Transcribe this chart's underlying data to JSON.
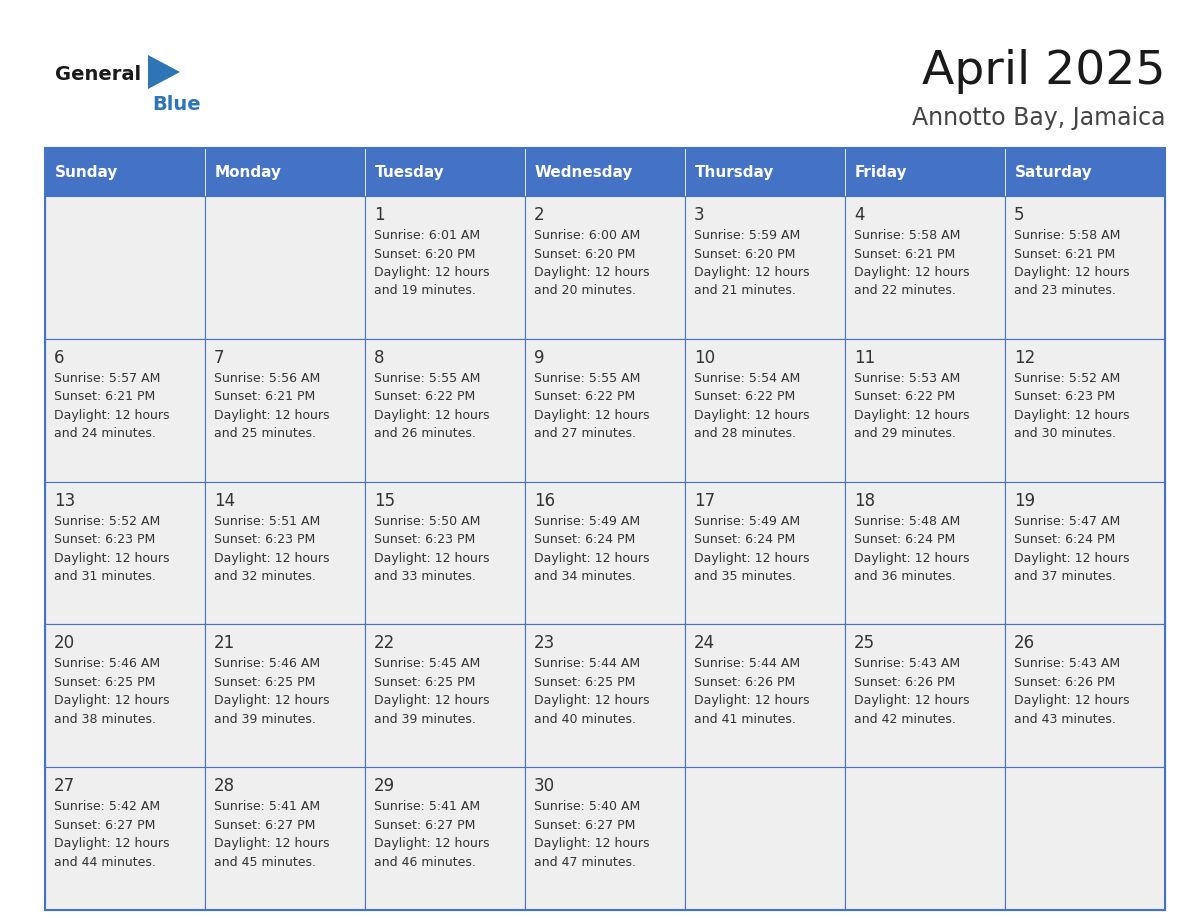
{
  "title": "April 2025",
  "subtitle": "Annotto Bay, Jamaica",
  "days_of_week": [
    "Sunday",
    "Monday",
    "Tuesday",
    "Wednesday",
    "Thursday",
    "Friday",
    "Saturday"
  ],
  "header_bg": "#4472C4",
  "header_text_color": "#FFFFFF",
  "cell_bg": "#EFEFEF",
  "border_color": "#4472C4",
  "row_border_color": "#4472C4",
  "text_color": "#333333",
  "title_color": "#1a1a1a",
  "subtitle_color": "#444444",
  "logo_general_color": "#1a1a1a",
  "logo_blue_color": "#2E75B6",
  "calendar": [
    [
      {
        "day": "",
        "sunrise": "",
        "sunset": "",
        "daylight": ""
      },
      {
        "day": "",
        "sunrise": "",
        "sunset": "",
        "daylight": ""
      },
      {
        "day": "1",
        "sunrise": "6:01 AM",
        "sunset": "6:20 PM",
        "daylight": "12 hours and 19 minutes."
      },
      {
        "day": "2",
        "sunrise": "6:00 AM",
        "sunset": "6:20 PM",
        "daylight": "12 hours and 20 minutes."
      },
      {
        "day": "3",
        "sunrise": "5:59 AM",
        "sunset": "6:20 PM",
        "daylight": "12 hours and 21 minutes."
      },
      {
        "day": "4",
        "sunrise": "5:58 AM",
        "sunset": "6:21 PM",
        "daylight": "12 hours and 22 minutes."
      },
      {
        "day": "5",
        "sunrise": "5:58 AM",
        "sunset": "6:21 PM",
        "daylight": "12 hours and 23 minutes."
      }
    ],
    [
      {
        "day": "6",
        "sunrise": "5:57 AM",
        "sunset": "6:21 PM",
        "daylight": "12 hours and 24 minutes."
      },
      {
        "day": "7",
        "sunrise": "5:56 AM",
        "sunset": "6:21 PM",
        "daylight": "12 hours and 25 minutes."
      },
      {
        "day": "8",
        "sunrise": "5:55 AM",
        "sunset": "6:22 PM",
        "daylight": "12 hours and 26 minutes."
      },
      {
        "day": "9",
        "sunrise": "5:55 AM",
        "sunset": "6:22 PM",
        "daylight": "12 hours and 27 minutes."
      },
      {
        "day": "10",
        "sunrise": "5:54 AM",
        "sunset": "6:22 PM",
        "daylight": "12 hours and 28 minutes."
      },
      {
        "day": "11",
        "sunrise": "5:53 AM",
        "sunset": "6:22 PM",
        "daylight": "12 hours and 29 minutes."
      },
      {
        "day": "12",
        "sunrise": "5:52 AM",
        "sunset": "6:23 PM",
        "daylight": "12 hours and 30 minutes."
      }
    ],
    [
      {
        "day": "13",
        "sunrise": "5:52 AM",
        "sunset": "6:23 PM",
        "daylight": "12 hours and 31 minutes."
      },
      {
        "day": "14",
        "sunrise": "5:51 AM",
        "sunset": "6:23 PM",
        "daylight": "12 hours and 32 minutes."
      },
      {
        "day": "15",
        "sunrise": "5:50 AM",
        "sunset": "6:23 PM",
        "daylight": "12 hours and 33 minutes."
      },
      {
        "day": "16",
        "sunrise": "5:49 AM",
        "sunset": "6:24 PM",
        "daylight": "12 hours and 34 minutes."
      },
      {
        "day": "17",
        "sunrise": "5:49 AM",
        "sunset": "6:24 PM",
        "daylight": "12 hours and 35 minutes."
      },
      {
        "day": "18",
        "sunrise": "5:48 AM",
        "sunset": "6:24 PM",
        "daylight": "12 hours and 36 minutes."
      },
      {
        "day": "19",
        "sunrise": "5:47 AM",
        "sunset": "6:24 PM",
        "daylight": "12 hours and 37 minutes."
      }
    ],
    [
      {
        "day": "20",
        "sunrise": "5:46 AM",
        "sunset": "6:25 PM",
        "daylight": "12 hours and 38 minutes."
      },
      {
        "day": "21",
        "sunrise": "5:46 AM",
        "sunset": "6:25 PM",
        "daylight": "12 hours and 39 minutes."
      },
      {
        "day": "22",
        "sunrise": "5:45 AM",
        "sunset": "6:25 PM",
        "daylight": "12 hours and 39 minutes."
      },
      {
        "day": "23",
        "sunrise": "5:44 AM",
        "sunset": "6:25 PM",
        "daylight": "12 hours and 40 minutes."
      },
      {
        "day": "24",
        "sunrise": "5:44 AM",
        "sunset": "6:26 PM",
        "daylight": "12 hours and 41 minutes."
      },
      {
        "day": "25",
        "sunrise": "5:43 AM",
        "sunset": "6:26 PM",
        "daylight": "12 hours and 42 minutes."
      },
      {
        "day": "26",
        "sunrise": "5:43 AM",
        "sunset": "6:26 PM",
        "daylight": "12 hours and 43 minutes."
      }
    ],
    [
      {
        "day": "27",
        "sunrise": "5:42 AM",
        "sunset": "6:27 PM",
        "daylight": "12 hours and 44 minutes."
      },
      {
        "day": "28",
        "sunrise": "5:41 AM",
        "sunset": "6:27 PM",
        "daylight": "12 hours and 45 minutes."
      },
      {
        "day": "29",
        "sunrise": "5:41 AM",
        "sunset": "6:27 PM",
        "daylight": "12 hours and 46 minutes."
      },
      {
        "day": "30",
        "sunrise": "5:40 AM",
        "sunset": "6:27 PM",
        "daylight": "12 hours and 47 minutes."
      },
      {
        "day": "",
        "sunrise": "",
        "sunset": "",
        "daylight": ""
      },
      {
        "day": "",
        "sunrise": "",
        "sunset": "",
        "daylight": ""
      },
      {
        "day": "",
        "sunrise": "",
        "sunset": "",
        "daylight": ""
      }
    ]
  ]
}
